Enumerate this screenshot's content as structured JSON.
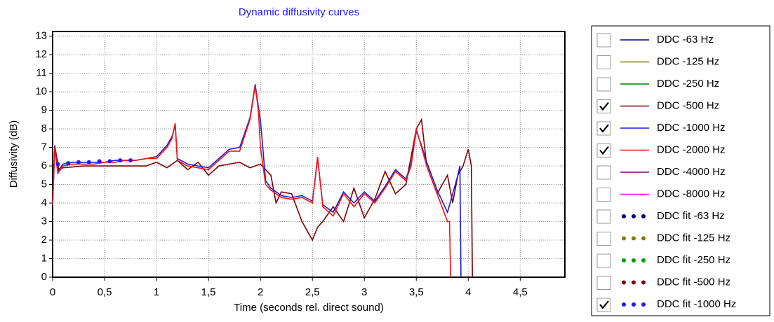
{
  "chart_data": {
    "type": "line",
    "title": "Dynamic diffusivity curves",
    "x_label": "Time (seconds rel. direct sound)",
    "y_label": "Diffusivity (dB)",
    "xlim": [
      0,
      4.93
    ],
    "ylim": [
      0,
      13.25
    ],
    "xticks": [
      0,
      {
        "value": 0.5,
        "label": "0,5"
      },
      1,
      {
        "value": 1.5,
        "label": "1,5"
      },
      2,
      {
        "value": 2.5,
        "label": "2,5"
      },
      3,
      {
        "value": 3.5,
        "label": "3,5"
      },
      4,
      {
        "value": 4.5,
        "label": "4,5"
      }
    ],
    "yticks": [
      0,
      1,
      2,
      3,
      4,
      5,
      6,
      7,
      8,
      9,
      10,
      11,
      12,
      13
    ],
    "grid": true,
    "series": [
      {
        "name": "DDC -63 Hz",
        "color": "#000080",
        "style": "solid",
        "checked": false
      },
      {
        "name": "DDC -125 Hz",
        "color": "#808000",
        "style": "solid",
        "checked": false
      },
      {
        "name": "DDC -250 Hz",
        "color": "#008000",
        "style": "solid",
        "checked": false
      },
      {
        "name": "DDC -500 Hz",
        "color": "#800000",
        "style": "solid",
        "checked": true,
        "x": [
          0,
          0.02,
          0.06,
          0.1,
          0.3,
          0.5,
          0.7,
          0.9,
          1.0,
          1.1,
          1.2,
          1.3,
          1.4,
          1.5,
          1.6,
          1.7,
          1.8,
          1.9,
          2.0,
          2.1,
          2.15,
          2.2,
          2.3,
          2.4,
          2.5,
          2.55,
          2.6,
          2.7,
          2.8,
          2.9,
          3.0,
          3.1,
          3.2,
          3.3,
          3.4,
          3.5,
          3.55,
          3.6,
          3.7,
          3.8,
          3.85,
          3.9,
          3.95,
          4.0,
          4.03,
          4.04
        ],
        "values": [
          3.9,
          7.1,
          5.8,
          5.9,
          6.0,
          6.0,
          6.0,
          6.0,
          6.2,
          5.9,
          6.3,
          5.8,
          6.2,
          5.5,
          6.0,
          6.1,
          6.2,
          5.9,
          6.1,
          5.5,
          4.0,
          4.6,
          4.5,
          3.0,
          2.0,
          2.7,
          3.0,
          3.8,
          3.0,
          4.8,
          3.2,
          4.2,
          5.7,
          4.5,
          5.0,
          8.0,
          8.5,
          6.0,
          4.5,
          5.5,
          4.0,
          5.5,
          6.0,
          6.9,
          6.0,
          0
        ]
      },
      {
        "name": "DDC -1000 Hz",
        "color": "#1c1cd8",
        "style": "solid",
        "checked": true,
        "x": [
          0,
          0.02,
          0.05,
          0.1,
          0.2,
          0.3,
          0.4,
          0.5,
          0.6,
          0.7,
          0.8,
          0.9,
          1.0,
          1.1,
          1.15,
          1.18,
          1.2,
          1.3,
          1.4,
          1.5,
          1.6,
          1.7,
          1.8,
          1.9,
          1.95,
          1.98,
          2.0,
          2.05,
          2.1,
          2.2,
          2.3,
          2.4,
          2.5,
          2.55,
          2.6,
          2.7,
          2.8,
          2.9,
          3.0,
          3.1,
          3.2,
          3.3,
          3.4,
          3.45,
          3.5,
          3.55,
          3.6,
          3.7,
          3.8,
          3.85,
          3.9,
          3.92,
          3.93
        ],
        "values": [
          3.9,
          7.1,
          5.7,
          6.1,
          6.2,
          6.2,
          6.2,
          6.2,
          6.3,
          6.3,
          6.3,
          6.4,
          6.5,
          7.1,
          7.6,
          8.2,
          6.4,
          6.1,
          6.0,
          5.9,
          6.4,
          6.9,
          7.0,
          8.6,
          10.4,
          9.2,
          8.5,
          5.2,
          4.8,
          4.4,
          4.3,
          4.4,
          4.1,
          6.4,
          3.9,
          3.5,
          4.6,
          4.0,
          4.6,
          4.1,
          4.9,
          5.8,
          5.3,
          6.1,
          7.9,
          7.1,
          6.2,
          4.7,
          3.5,
          4.5,
          5.5,
          6.0,
          0
        ]
      },
      {
        "name": "DDC -2000 Hz",
        "color": "#ff1010",
        "style": "solid",
        "checked": true,
        "x": [
          0,
          0.02,
          0.05,
          0.1,
          0.2,
          0.3,
          0.4,
          0.5,
          0.6,
          0.7,
          0.8,
          0.9,
          1.0,
          1.1,
          1.15,
          1.18,
          1.2,
          1.3,
          1.4,
          1.5,
          1.6,
          1.7,
          1.8,
          1.9,
          1.95,
          1.98,
          2.0,
          2.05,
          2.1,
          2.2,
          2.3,
          2.4,
          2.5,
          2.55,
          2.6,
          2.7,
          2.8,
          2.9,
          3.0,
          3.1,
          3.2,
          3.3,
          3.4,
          3.45,
          3.5,
          3.55,
          3.6,
          3.7,
          3.8,
          3.82,
          3.83
        ],
        "values": [
          3.9,
          7.0,
          5.6,
          6.0,
          6.1,
          6.1,
          6.1,
          6.2,
          6.2,
          6.3,
          6.3,
          6.4,
          6.4,
          7.0,
          7.5,
          8.3,
          6.3,
          6.0,
          5.9,
          5.8,
          6.3,
          6.8,
          6.8,
          8.5,
          10.3,
          9.0,
          7.0,
          5.0,
          4.7,
          4.3,
          4.2,
          4.3,
          4.0,
          6.5,
          3.8,
          3.3,
          4.5,
          3.8,
          4.5,
          4.0,
          4.8,
          5.7,
          5.2,
          6.0,
          8.0,
          7.0,
          6.0,
          4.5,
          3.0,
          3.0,
          0
        ]
      },
      {
        "name": "DDC -4000 Hz",
        "color": "#800080",
        "style": "solid",
        "checked": false
      },
      {
        "name": "DDC -8000 Hz",
        "color": "#ff00ff",
        "style": "solid",
        "checked": false
      },
      {
        "name": "DDC fit -63 Hz",
        "color": "#000080",
        "style": "dots",
        "checked": false
      },
      {
        "name": "DDC fit -125 Hz",
        "color": "#808000",
        "style": "dots",
        "checked": false
      },
      {
        "name": "DDC fit -250 Hz",
        "color": "#00a000",
        "style": "dots",
        "checked": false
      },
      {
        "name": "DDC fit -500 Hz",
        "color": "#800000",
        "style": "dots",
        "checked": false
      },
      {
        "name": "DDC fit -1000 Hz",
        "color": "#1c1cff",
        "style": "dots",
        "checked": true,
        "x": [
          0.05,
          0.15,
          0.25,
          0.35,
          0.45,
          0.55,
          0.65,
          0.75
        ],
        "values": [
          6.1,
          6.15,
          6.2,
          6.2,
          6.25,
          6.25,
          6.3,
          6.3
        ]
      }
    ]
  }
}
